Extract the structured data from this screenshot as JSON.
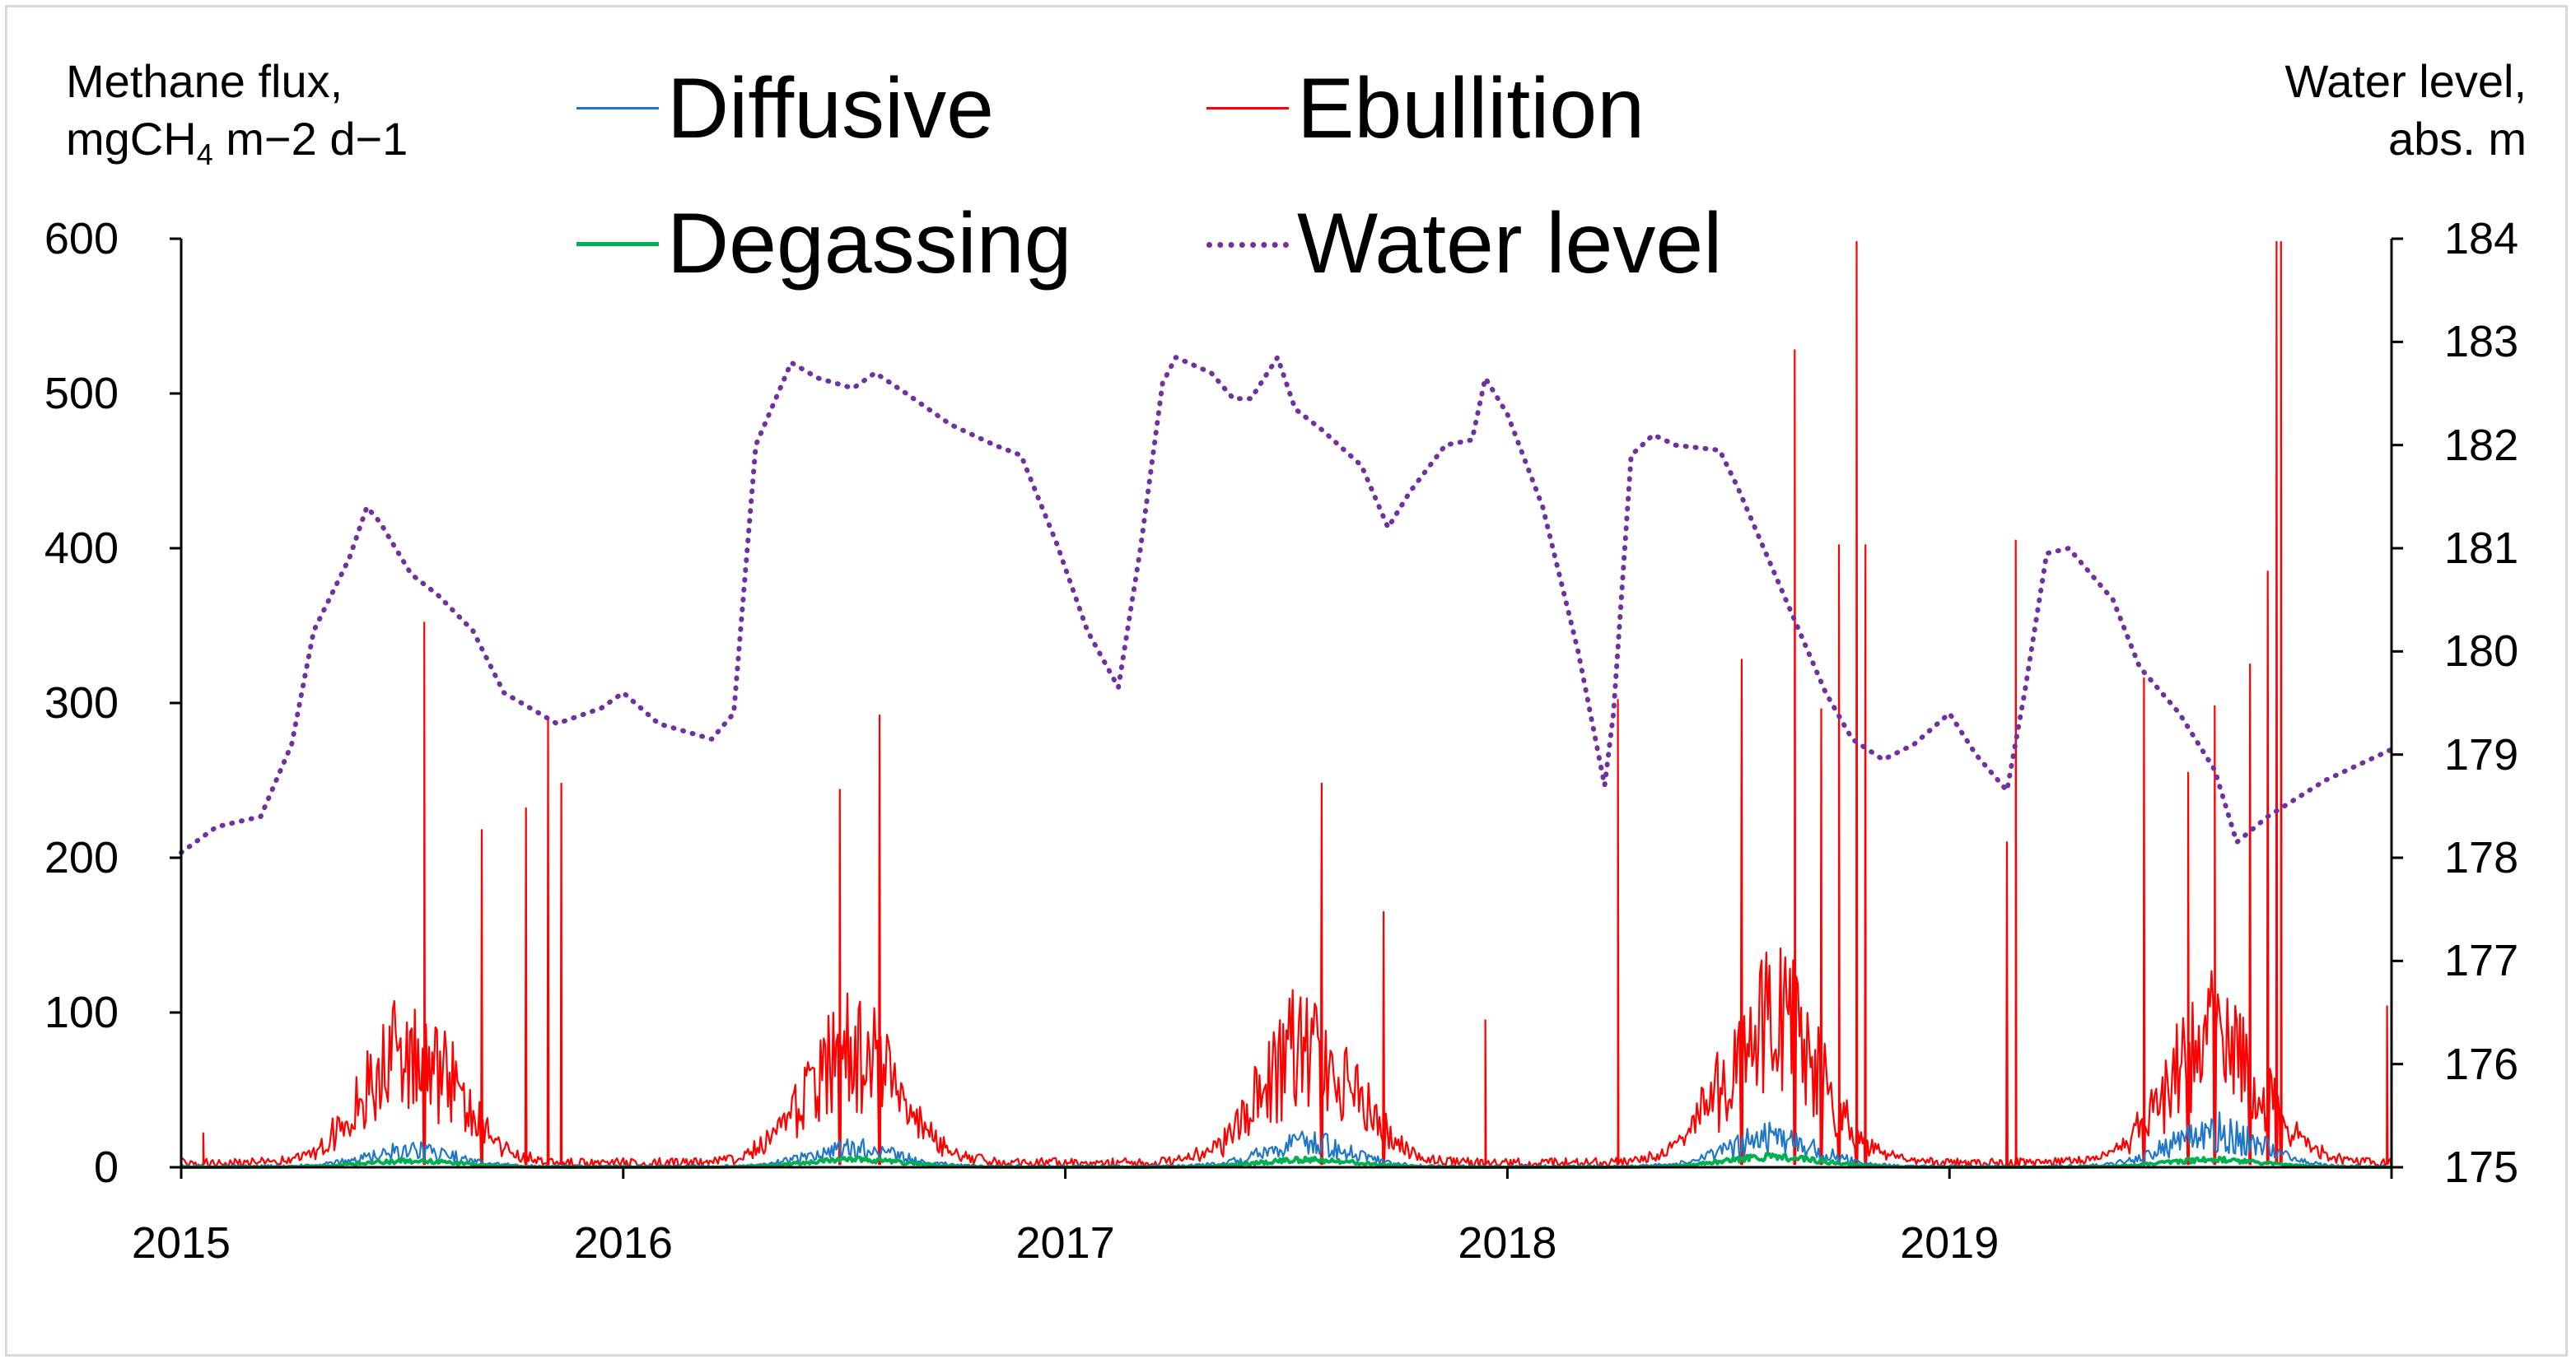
{
  "chart_data": {
    "type": "line",
    "title": "",
    "xlabel": "",
    "ylabel": "Methane flux, mgCH4 m−2 d−1",
    "ylabel_right": "Water level, abs. m",
    "y_title": {
      "line1": "Methane flux,",
      "line2_prefix": "mgCH",
      "line2_sub": "4",
      "line2_suffix": " m−2 d−1"
    },
    "y2_title": {
      "line1": "Water level,",
      "line2": "abs. m"
    },
    "xlim": [
      2015,
      2020
    ],
    "ylim": [
      0,
      600
    ],
    "y2lim": [
      175,
      184
    ],
    "x_ticks": [
      "2015",
      "2016",
      "2017",
      "2018",
      "2019"
    ],
    "y_ticks": [
      "0",
      "100",
      "200",
      "300",
      "400",
      "500",
      "600"
    ],
    "y2_ticks": [
      "175",
      "176",
      "177",
      "178",
      "179",
      "180",
      "181",
      "182",
      "183",
      "184"
    ],
    "legend": [
      {
        "name": "Diffusive",
        "color": "#1f77c8",
        "style": "solid"
      },
      {
        "name": "Ebullition",
        "color": "#ff0000",
        "style": "solid"
      },
      {
        "name": "Degassing",
        "color": "#00b050",
        "style": "solid"
      },
      {
        "name": "Water level",
        "color": "#7030a0",
        "style": "dotted"
      }
    ],
    "water_level": {
      "x": [
        2015.0,
        2015.08,
        2015.18,
        2015.25,
        2015.3,
        2015.38,
        2015.42,
        2015.45,
        2015.52,
        2015.58,
        2015.66,
        2015.73,
        2015.85,
        2015.95,
        2016.0,
        2016.08,
        2016.2,
        2016.25,
        2016.3,
        2016.38,
        2016.44,
        2016.52,
        2016.57,
        2016.64,
        2016.74,
        2016.84,
        2016.9,
        2016.98,
        2017.05,
        2017.12,
        2017.17,
        2017.22,
        2017.25,
        2017.33,
        2017.38,
        2017.42,
        2017.48,
        2017.52,
        2017.58,
        2017.67,
        2017.73,
        2017.78,
        2017.86,
        2017.92,
        2017.95,
        2018.0,
        2018.08,
        2018.16,
        2018.22,
        2018.24,
        2018.28,
        2018.33,
        2018.38,
        2018.48,
        2018.52,
        2018.62,
        2018.67,
        2018.72,
        2018.78,
        2018.85,
        2018.92,
        2019.0,
        2019.06,
        2019.13,
        2019.17,
        2019.22,
        2019.27,
        2019.37,
        2019.43,
        2019.52,
        2019.6,
        2019.65,
        2019.72,
        2019.85,
        2020.0
      ],
      "y": [
        178.05,
        178.3,
        178.4,
        179.1,
        180.2,
        180.9,
        181.4,
        181.25,
        180.75,
        180.55,
        180.2,
        179.6,
        179.3,
        179.45,
        179.6,
        179.3,
        179.15,
        179.4,
        182.0,
        182.8,
        182.65,
        182.55,
        182.7,
        182.5,
        182.2,
        182.0,
        181.9,
        181.05,
        180.2,
        179.65,
        181.0,
        182.6,
        182.85,
        182.7,
        182.45,
        182.45,
        182.85,
        182.35,
        182.15,
        181.8,
        181.2,
        181.55,
        182.0,
        182.05,
        182.65,
        182.3,
        181.4,
        180.0,
        178.7,
        179.4,
        181.9,
        182.1,
        182.0,
        181.95,
        181.6,
        180.6,
        180.1,
        179.6,
        179.15,
        178.95,
        179.1,
        179.4,
        179.0,
        178.65,
        179.6,
        180.95,
        181.0,
        180.5,
        179.85,
        179.4,
        178.85,
        178.15,
        178.4,
        178.75,
        179.05
      ]
    },
    "ebullition_spikes": {
      "x": [
        2015.05,
        2015.55,
        2015.68,
        2015.78,
        2015.83,
        2015.86,
        2016.49,
        2016.58,
        2017.58,
        2017.72,
        2017.95,
        2018.25,
        2018.53,
        2018.65,
        2018.71,
        2018.75,
        2018.79,
        2018.81,
        2019.13,
        2019.15,
        2019.44,
        2019.54,
        2019.6,
        2019.68,
        2019.72,
        2019.74,
        2019.75,
        2019.99
      ],
      "y": [
        22,
        352,
        218,
        232,
        290,
        248,
        244,
        292,
        248,
        165,
        95,
        302,
        328,
        528,
        296,
        402,
        598,
        402,
        210,
        405,
        316,
        255,
        298,
        325,
        385,
        598,
        598,
        104
      ]
    },
    "seasonal_peaks": {
      "x": [
        2015.52,
        2016.52,
        2017.55,
        2018.6,
        2019.6
      ],
      "ebullition": [
        90,
        90,
        95,
        115,
        100
      ],
      "diffusive": [
        12,
        14,
        18,
        22,
        28
      ],
      "degassing": [
        5,
        6,
        6,
        8,
        6
      ]
    }
  }
}
